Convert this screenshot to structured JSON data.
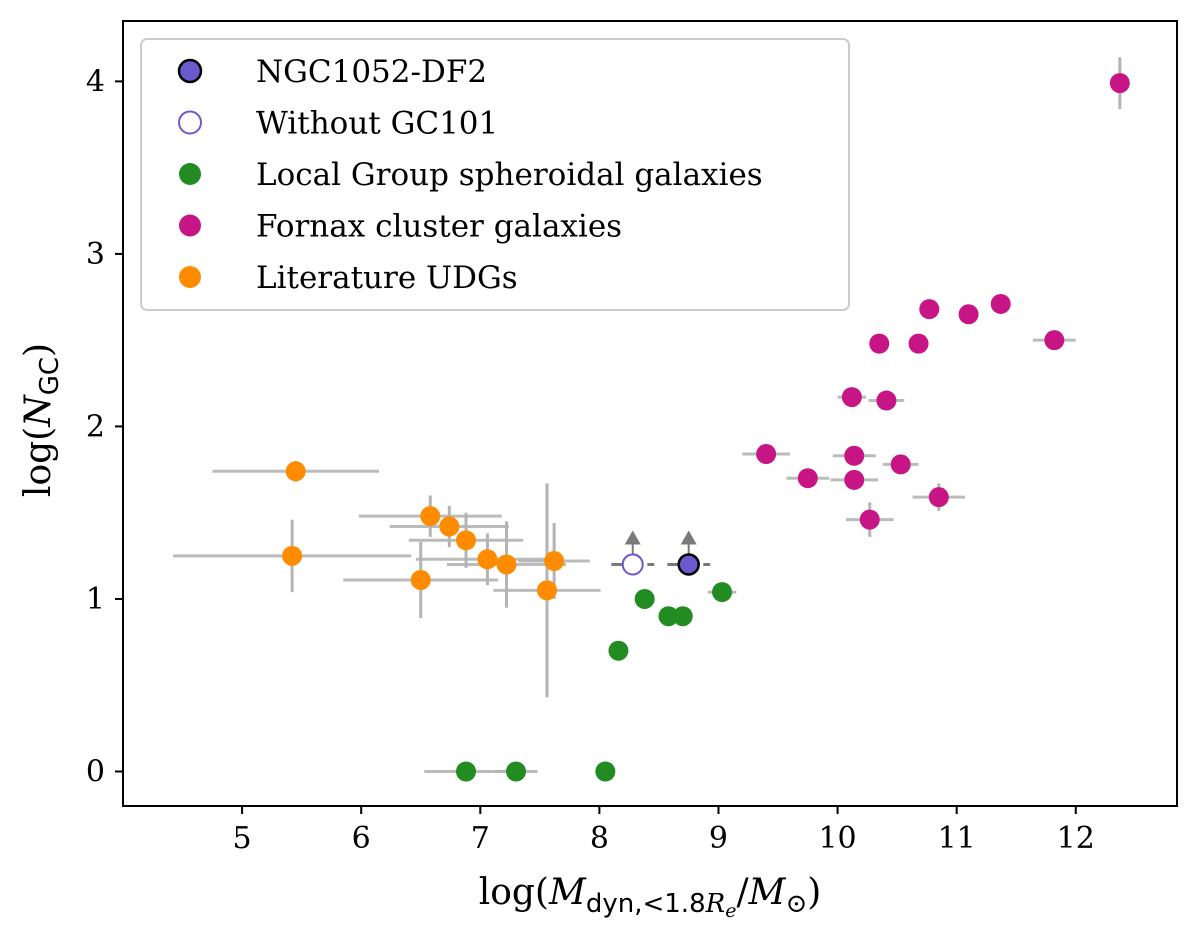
{
  "chart_data": {
    "type": "scatter",
    "xlabel": {
      "pre": "log(",
      "m": "M",
      "sub": "dyn,<1.8",
      "r": "R",
      "rsub": "e",
      "mid": "/",
      "m2": "M",
      "sun": "⊙",
      "post": ")"
    },
    "ylabel": {
      "pre": "log(",
      "n": "N",
      "sub": "GC",
      "post": ")"
    },
    "xlim": [
      4.0,
      12.85
    ],
    "ylim": [
      -0.2,
      4.35
    ],
    "xticks": [
      5,
      6,
      7,
      8,
      9,
      10,
      11,
      12
    ],
    "yticks": [
      0,
      1,
      2,
      3,
      4
    ],
    "grid": false,
    "legend_position": "upper-left",
    "errorbar_color": "#b4b4b4",
    "series": [
      {
        "name": "NGC1052-DF2",
        "style": "filled-outline",
        "color": "#6a5acd",
        "edge": "#000000",
        "lower_limit": true,
        "points": [
          {
            "x": 8.75,
            "y": 1.2,
            "xerr": 0.18,
            "yerr": 0
          }
        ]
      },
      {
        "name": "Without GC101",
        "style": "open",
        "color": "#6a5acd",
        "lower_limit": true,
        "points": [
          {
            "x": 8.28,
            "y": 1.2,
            "xerr": 0.18,
            "yerr": 0
          }
        ]
      },
      {
        "name": "Local Group spheroidal galaxies",
        "style": "filled",
        "color": "#228b22",
        "points": [
          {
            "x": 6.88,
            "y": 0.0,
            "xerr": 0.35,
            "yerr": 0
          },
          {
            "x": 7.3,
            "y": 0.0,
            "xerr": 0.18,
            "yerr": 0
          },
          {
            "x": 8.05,
            "y": 0.0,
            "xerr": 0,
            "yerr": 0
          },
          {
            "x": 8.16,
            "y": 0.7,
            "xerr": 0,
            "yerr": 0
          },
          {
            "x": 8.38,
            "y": 1.0,
            "xerr": 0,
            "yerr": 0
          },
          {
            "x": 8.58,
            "y": 0.9,
            "xerr": 0,
            "yerr": 0
          },
          {
            "x": 8.7,
            "y": 0.9,
            "xerr": 0,
            "yerr": 0
          },
          {
            "x": 9.03,
            "y": 1.04,
            "xerr": 0.12,
            "yerr": 0
          }
        ]
      },
      {
        "name": "Fornax cluster galaxies",
        "style": "filled",
        "color": "#c71585",
        "points": [
          {
            "x": 12.37,
            "y": 3.99,
            "xerr": 0,
            "yerr": 0.15
          },
          {
            "x": 11.37,
            "y": 2.71,
            "xerr": 0,
            "yerr": 0
          },
          {
            "x": 11.1,
            "y": 2.65,
            "xerr": 0,
            "yerr": 0
          },
          {
            "x": 10.77,
            "y": 2.68,
            "xerr": 0,
            "yerr": 0
          },
          {
            "x": 10.68,
            "y": 2.48,
            "xerr": 0,
            "yerr": 0
          },
          {
            "x": 10.35,
            "y": 2.48,
            "xerr": 0,
            "yerr": 0
          },
          {
            "x": 11.82,
            "y": 2.5,
            "xerr": 0.18,
            "yerr": 0
          },
          {
            "x": 10.12,
            "y": 2.17,
            "xerr": 0.12,
            "yerr": 0
          },
          {
            "x": 10.41,
            "y": 2.15,
            "xerr": 0.15,
            "yerr": 0
          },
          {
            "x": 9.4,
            "y": 1.84,
            "xerr": 0.2,
            "yerr": 0
          },
          {
            "x": 9.75,
            "y": 1.7,
            "xerr": 0.18,
            "yerr": 0
          },
          {
            "x": 10.14,
            "y": 1.83,
            "xerr": 0.18,
            "yerr": 0
          },
          {
            "x": 10.14,
            "y": 1.69,
            "xerr": 0.2,
            "yerr": 0
          },
          {
            "x": 10.53,
            "y": 1.78,
            "xerr": 0.15,
            "yerr": 0
          },
          {
            "x": 10.85,
            "y": 1.59,
            "xerr": 0.22,
            "yerr": 0.08
          },
          {
            "x": 10.27,
            "y": 1.46,
            "xerr": 0.2,
            "yerr": 0.1
          }
        ]
      },
      {
        "name": "Literature UDGs",
        "style": "filled",
        "color": "#ff8c00",
        "points": [
          {
            "x": 5.45,
            "y": 1.74,
            "xerr": 0.7,
            "yerr": 0.06
          },
          {
            "x": 5.42,
            "y": 1.25,
            "xerr": 1.0,
            "yerr": 0.21
          },
          {
            "x": 6.58,
            "y": 1.48,
            "xerr": 0.6,
            "yerr": 0.12
          },
          {
            "x": 6.74,
            "y": 1.42,
            "xerr": 0.5,
            "yerr": 0.12
          },
          {
            "x": 6.88,
            "y": 1.34,
            "xerr": 0.48,
            "yerr": 0.16
          },
          {
            "x": 6.5,
            "y": 1.11,
            "xerr": 0.65,
            "yerr": 0.22
          },
          {
            "x": 7.06,
            "y": 1.23,
            "xerr": 0.6,
            "yerr": 0.15
          },
          {
            "x": 7.22,
            "y": 1.2,
            "xerr": 0.5,
            "yerr": 0.25
          },
          {
            "x": 7.62,
            "y": 1.22,
            "xerr": 0.3,
            "yerr": 0.22
          },
          {
            "x": 7.56,
            "y": 1.05,
            "xerr": 0.45,
            "yerr": 0.62
          }
        ]
      }
    ]
  }
}
